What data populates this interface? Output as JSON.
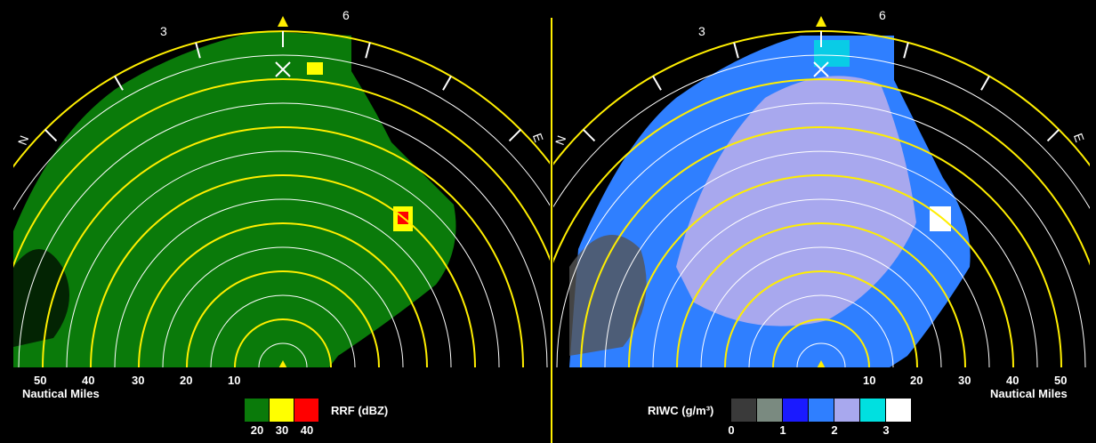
{
  "left_panel": {
    "bearing_labels": [
      "3",
      "6",
      "N",
      "E"
    ],
    "range_labels": [
      "50",
      "40",
      "30",
      "20",
      "10"
    ],
    "range_unit": "Nautical Miles",
    "legend": {
      "title": "RRF (dBZ)",
      "colors": [
        "#0a7a0a",
        "#ffff00",
        "#ff0000"
      ],
      "tick_labels": [
        "20",
        "30",
        "40"
      ]
    }
  },
  "right_panel": {
    "bearing_labels": [
      "3",
      "6",
      "N",
      "E"
    ],
    "range_labels": [
      "10",
      "20",
      "30",
      "40",
      "50"
    ],
    "range_unit": "Nautical Miles",
    "legend": {
      "title": "RIWC (g/m³)",
      "colors": [
        "#3a3a3a",
        "#7a8a80",
        "#1a1aff",
        "#2f7fff",
        "#a8a8ee",
        "#00e0e0",
        "#ffffff"
      ],
      "tick_labels": [
        "0",
        "1",
        "2",
        "3"
      ]
    }
  }
}
